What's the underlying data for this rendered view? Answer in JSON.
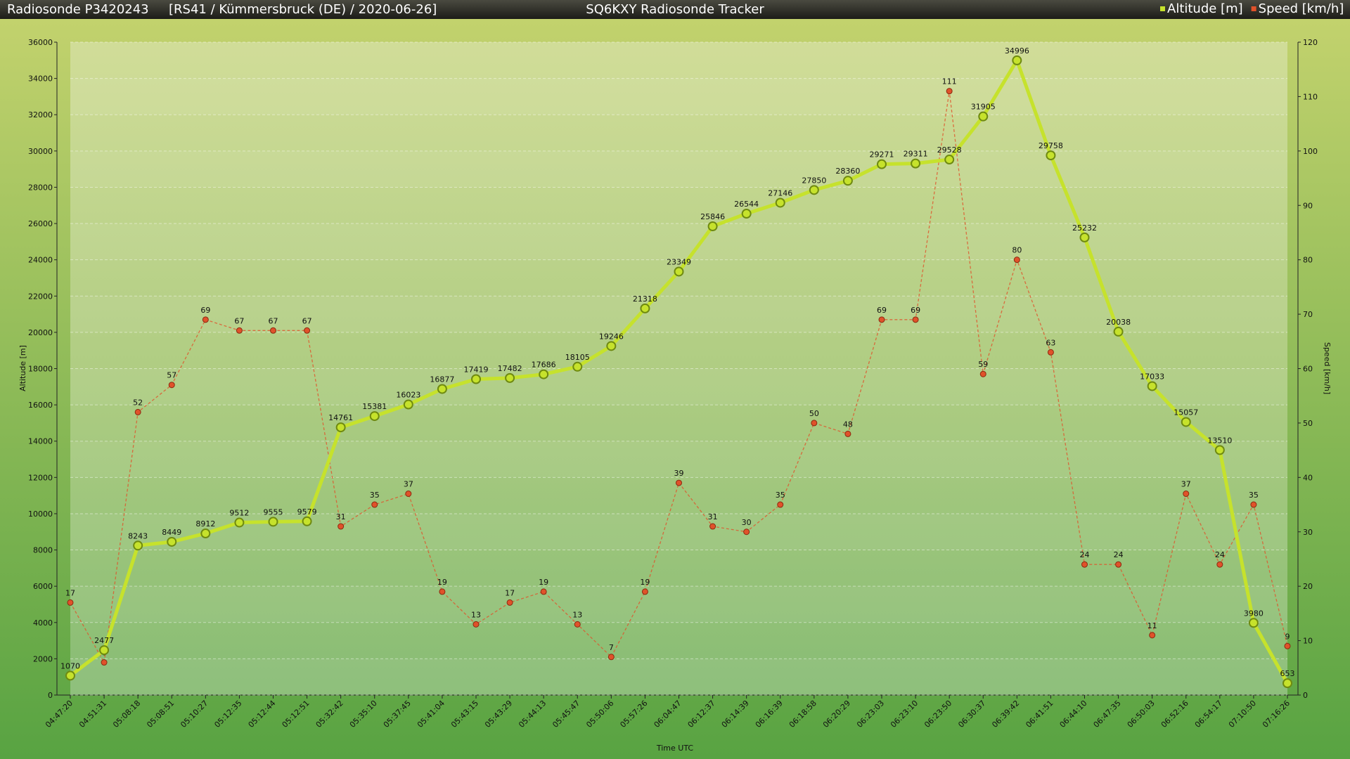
{
  "header": {
    "left": "Radiosonde P3420243",
    "info": "[RS41 / Kümmersbruck (DE) / 2020-06-26]",
    "title": "SQ6KXY Radiosonde Tracker"
  },
  "chart_data": {
    "type": "line",
    "xlabel": "Time UTC",
    "ylabel": "Altitude [m]",
    "y2label": "Speed [km/h]",
    "categories": [
      "04:47:20",
      "04:51:31",
      "05:08:18",
      "05:08:51",
      "05:10:27",
      "05:12:35",
      "05:12:44",
      "05:12:51",
      "05:32:42",
      "05:35:10",
      "05:37:45",
      "05:41:04",
      "05:43:15",
      "05:43:29",
      "05:44:13",
      "05:45:47",
      "05:50:06",
      "05:57:26",
      "06:04:47",
      "06:12:37",
      "06:14:39",
      "06:16:39",
      "06:18:58",
      "06:20:29",
      "06:23:03",
      "06:23:10",
      "06:23:50",
      "06:30:37",
      "06:39:42",
      "06:41:51",
      "06:44:10",
      "06:47:35",
      "06:50:03",
      "06:52:16",
      "06:54:17",
      "07:10:50",
      "07:16:26"
    ],
    "series": [
      {
        "name": "Altitude [m]",
        "color": "#c6e22c",
        "values": [
          1070,
          2477,
          8243,
          8449,
          8912,
          9512,
          9555,
          9579,
          14761,
          15381,
          16023,
          16877,
          17419,
          17482,
          17686,
          18105,
          19246,
          21318,
          23349,
          25846,
          26544,
          27146,
          27850,
          28360,
          29271,
          29311,
          29528,
          31905,
          34996,
          29758,
          25232,
          20038,
          17033,
          15057,
          13510,
          3980,
          653
        ]
      },
      {
        "name": "Speed [km/h]",
        "color": "#e0522a",
        "axis": "y2",
        "values": [
          17,
          6,
          52,
          57,
          69,
          67,
          67,
          67,
          31,
          35,
          37,
          19,
          13,
          17,
          19,
          13,
          7,
          19,
          39,
          31,
          30,
          35,
          50,
          48,
          69,
          69,
          111,
          59,
          80,
          63,
          24,
          24,
          11,
          37,
          24,
          35,
          9
        ]
      }
    ],
    "ylim": [
      0,
      36000
    ],
    "yticks": [
      0,
      2000,
      4000,
      6000,
      8000,
      10000,
      12000,
      14000,
      16000,
      18000,
      20000,
      22000,
      24000,
      26000,
      28000,
      30000,
      32000,
      34000,
      36000
    ],
    "y2lim": [
      0,
      120
    ],
    "y2ticks": [
      0,
      10,
      20,
      30,
      40,
      50,
      60,
      70,
      80,
      90,
      100,
      110,
      120
    ],
    "grid": true,
    "legend": "top-right"
  }
}
